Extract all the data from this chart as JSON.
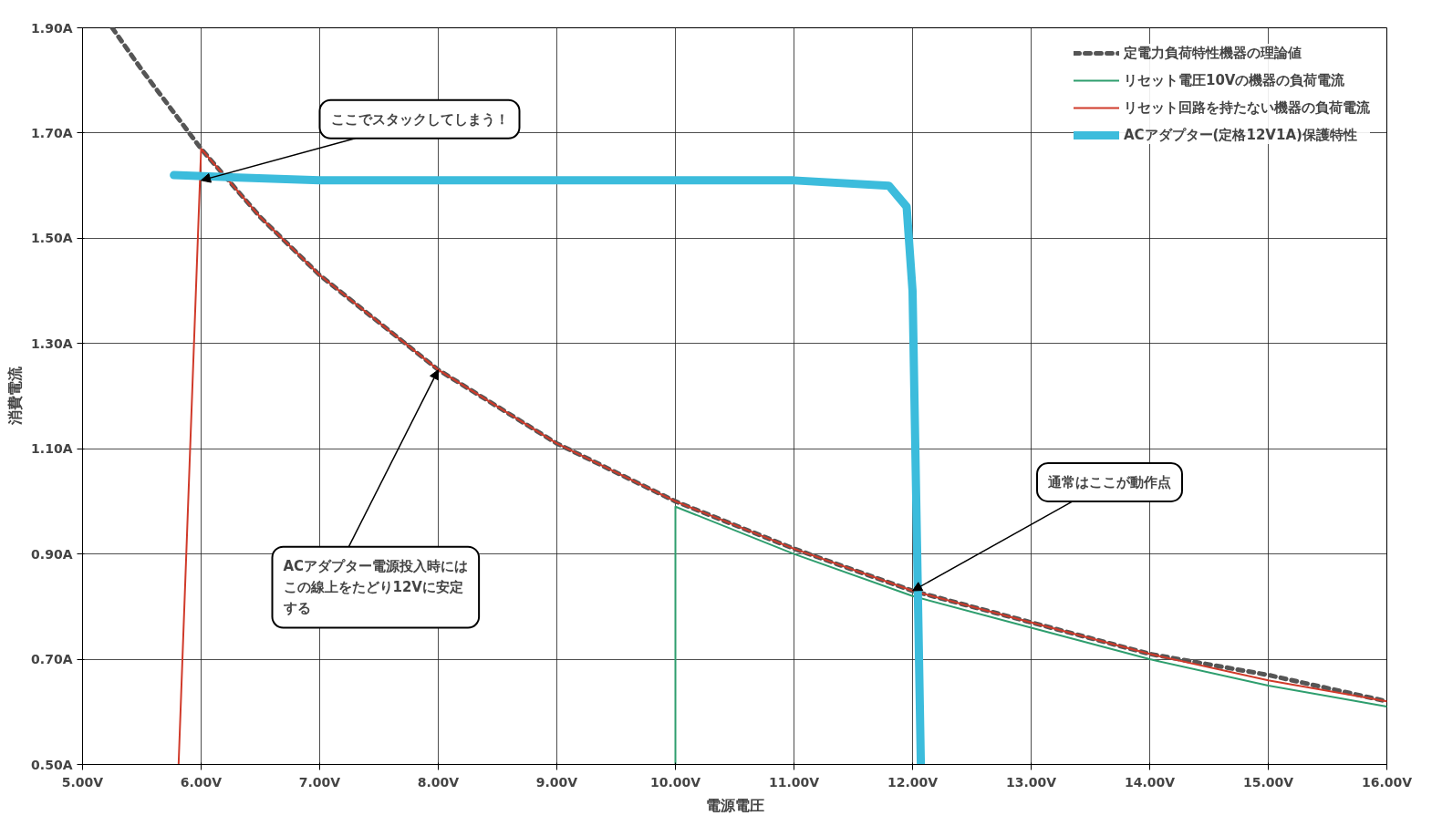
{
  "chart_data": {
    "type": "line",
    "xlabel": "電源電圧",
    "ylabel": "消費電流",
    "xlim": [
      5,
      16
    ],
    "ylim": [
      0.5,
      1.9
    ],
    "xticks": [
      {
        "value": 5,
        "label": "5.00V"
      },
      {
        "value": 6,
        "label": "6.00V"
      },
      {
        "value": 7,
        "label": "7.00V"
      },
      {
        "value": 8,
        "label": "8.00V"
      },
      {
        "value": 9,
        "label": "9.00V"
      },
      {
        "value": 10,
        "label": "10.00V"
      },
      {
        "value": 11,
        "label": "11.00V"
      },
      {
        "value": 12,
        "label": "12.00V"
      },
      {
        "value": 13,
        "label": "13.00V"
      },
      {
        "value": 14,
        "label": "14.00V"
      },
      {
        "value": 15,
        "label": "15.00V"
      },
      {
        "value": 16,
        "label": "16.00V"
      }
    ],
    "yticks": [
      {
        "value": 0.5,
        "label": "0.50A"
      },
      {
        "value": 0.7,
        "label": "0.70A"
      },
      {
        "value": 0.9,
        "label": "0.90A"
      },
      {
        "value": 1.1,
        "label": "1.10A"
      },
      {
        "value": 1.3,
        "label": "1.30A"
      },
      {
        "value": 1.5,
        "label": "1.50A"
      },
      {
        "value": 1.7,
        "label": "1.70A"
      },
      {
        "value": 1.9,
        "label": "1.90A"
      }
    ],
    "grid": true,
    "legend": "top right",
    "series": [
      {
        "name": "定電力負荷特性機器の理論値",
        "color": "#555555",
        "line_style": "dashed",
        "x": [
          5.25,
          5.5,
          6,
          6.5,
          7,
          8,
          9,
          10,
          11,
          12,
          13,
          14,
          15,
          16
        ],
        "values": [
          1.9,
          1.82,
          1.67,
          1.54,
          1.43,
          1.25,
          1.11,
          1.0,
          0.91,
          0.83,
          0.77,
          0.71,
          0.67,
          0.62
        ]
      },
      {
        "name": "リセット電圧10Vの機器の負荷電流",
        "color": "#2e9e6e",
        "line_style": "solid",
        "x": [
          10,
          10,
          11,
          12,
          13,
          14,
          15,
          16
        ],
        "values": [
          0.5,
          0.99,
          0.9,
          0.82,
          0.76,
          0.7,
          0.65,
          0.61
        ]
      },
      {
        "name": "リセット回路を持たない機器の負荷電流",
        "color": "#d03a2a",
        "line_style": "solid",
        "x": [
          5.81,
          6.0,
          6.5,
          7,
          8,
          9,
          10,
          11,
          12,
          13,
          14,
          15,
          16
        ],
        "values": [
          0.5,
          1.67,
          1.54,
          1.43,
          1.25,
          1.11,
          1.0,
          0.91,
          0.83,
          0.77,
          0.71,
          0.66,
          0.62
        ]
      },
      {
        "name": "ACアダプター(定格12V1A)保護特性",
        "color": "#3cbcdc",
        "line_style": "solid",
        "x": [
          5.77,
          7,
          9,
          11,
          11.8,
          11.95,
          12.0,
          12.07
        ],
        "values": [
          1.62,
          1.61,
          1.61,
          1.61,
          1.6,
          1.56,
          1.4,
          0.5
        ]
      }
    ],
    "annotations": [
      {
        "text": "ここでスタックしてしまう！",
        "x": 6,
        "y": 1.61
      },
      {
        "text": "ACアダプター電源投入時にはこの線上をたどり12Vに安定する",
        "x": 8,
        "y": 1.25
      },
      {
        "text": "通常はここが動作点",
        "x": 12,
        "y": 0.83
      }
    ]
  }
}
